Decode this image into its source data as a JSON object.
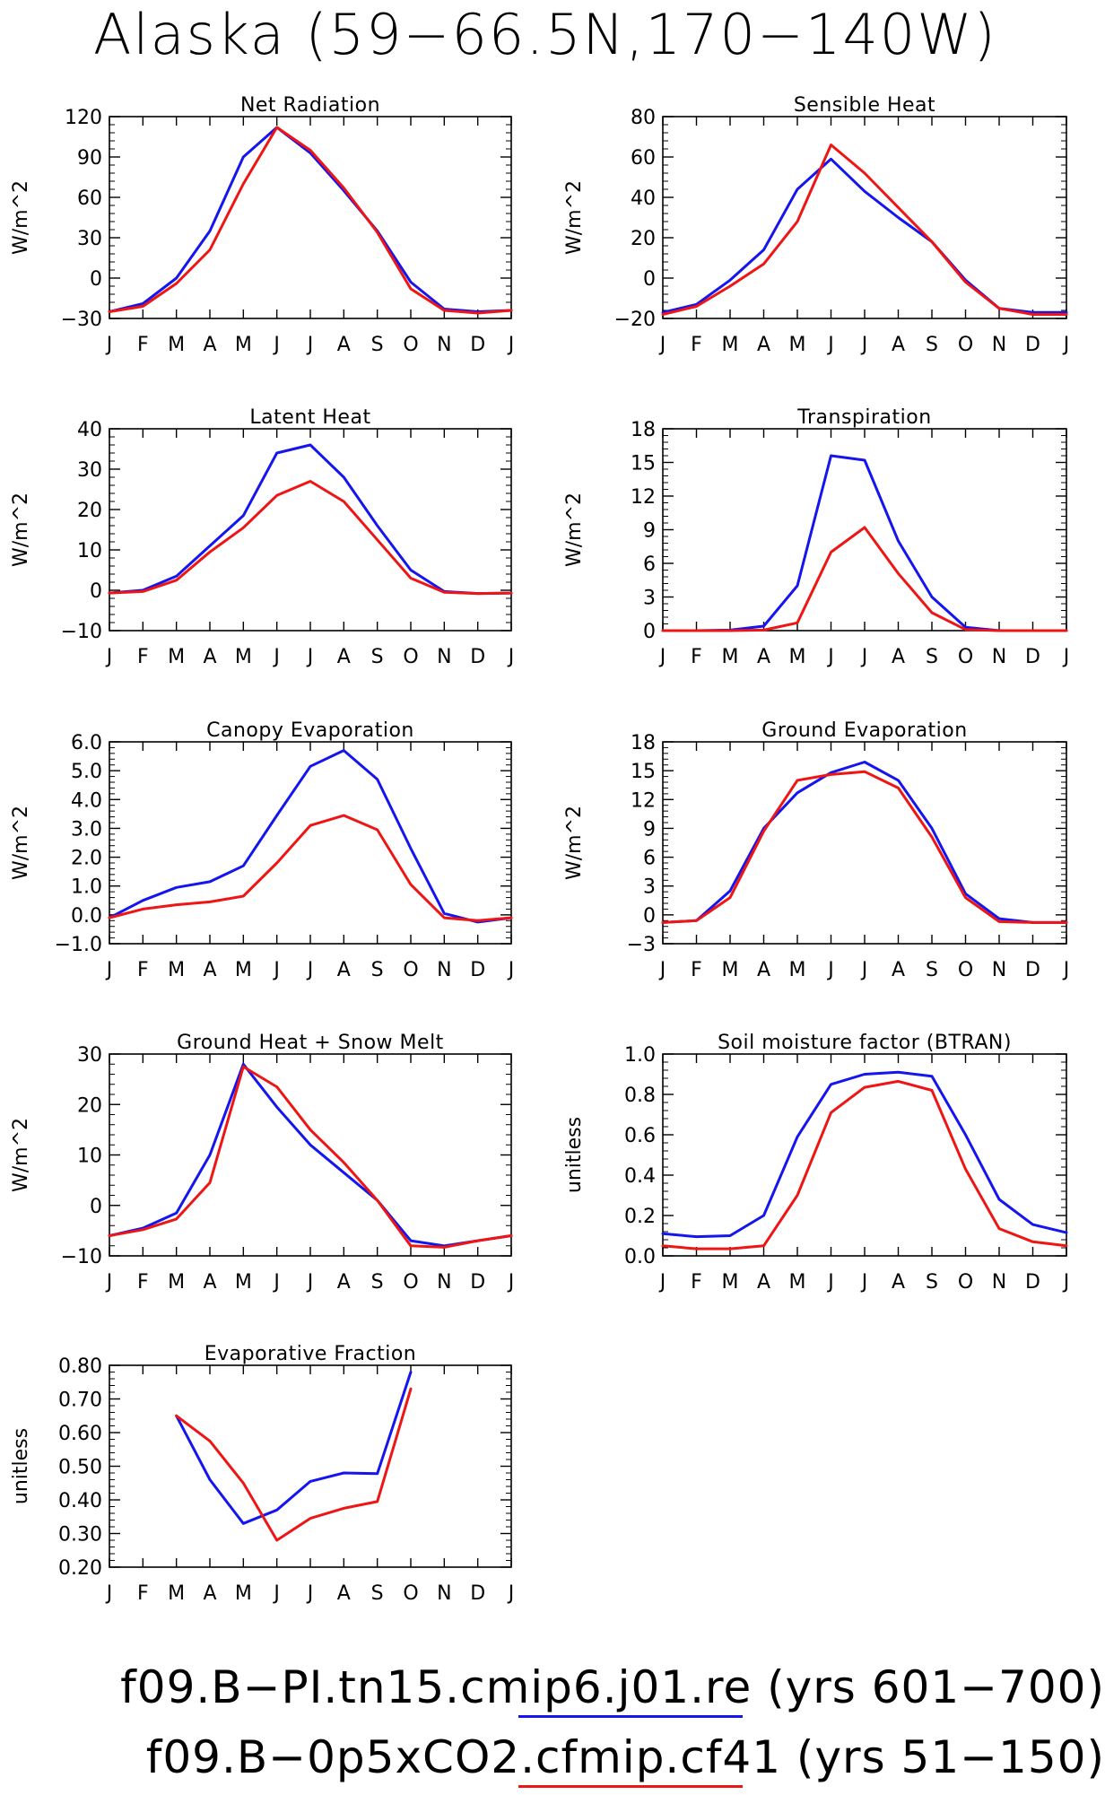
{
  "title": "Alaska (59−66.5N,170−140W)",
  "colors": {
    "series_1": "#1515ee",
    "series_2": "#ee1515"
  },
  "footer": {
    "run1": "f09.B−PI.tn15.cmip6.j01.re (yrs 601−700)",
    "run2": "f09.B−0p5xCO2.cfmip.cf41 (yrs 51−150)"
  },
  "chart_data": [
    {
      "type": "line",
      "title": "Net Radiation",
      "ylabel": "W/m^2",
      "x": [
        "J",
        "F",
        "M",
        "A",
        "M",
        "J",
        "J",
        "A",
        "S",
        "O",
        "N",
        "D",
        "J"
      ],
      "ylim": [
        -30,
        120
      ],
      "yticks": [
        -30,
        0,
        30,
        60,
        90,
        120
      ],
      "ytick_labels": [
        "−30",
        "0",
        "30",
        "60",
        "90",
        "120"
      ],
      "series": [
        {
          "values": [
            -25,
            -19,
            0,
            35,
            90,
            112,
            93,
            65,
            35,
            -3,
            -23,
            -25,
            -24
          ]
        },
        {
          "values": [
            -25,
            -21,
            -4,
            21,
            70,
            112,
            95,
            67,
            34,
            -8,
            -24,
            -26,
            -24
          ]
        }
      ]
    },
    {
      "type": "line",
      "title": "Sensible Heat",
      "ylabel": "W/m^2",
      "x": [
        "J",
        "F",
        "M",
        "A",
        "M",
        "J",
        "J",
        "A",
        "S",
        "O",
        "N",
        "D",
        "J"
      ],
      "ylim": [
        -20,
        80
      ],
      "yticks": [
        -20,
        0,
        20,
        40,
        60,
        80
      ],
      "ytick_labels": [
        "−20",
        "0",
        "20",
        "40",
        "60",
        "80"
      ],
      "series": [
        {
          "values": [
            -17,
            -13,
            -1,
            14,
            44,
            59,
            43,
            30,
            18,
            -1,
            -15,
            -17,
            -17
          ]
        },
        {
          "values": [
            -18,
            -14,
            -4,
            7,
            28,
            66,
            52,
            35,
            18,
            -2,
            -15,
            -18,
            -18
          ]
        }
      ]
    },
    {
      "type": "line",
      "title": "Latent Heat",
      "ylabel": "W/m^2",
      "x": [
        "J",
        "F",
        "M",
        "A",
        "M",
        "J",
        "J",
        "A",
        "S",
        "O",
        "N",
        "D",
        "J"
      ],
      "ylim": [
        -10,
        40
      ],
      "yticks": [
        -10,
        0,
        10,
        20,
        30,
        40
      ],
      "ytick_labels": [
        "−10",
        "0",
        "10",
        "20",
        "30",
        "40"
      ],
      "series": [
        {
          "values": [
            -0.7,
            0,
            3.5,
            11,
            18.5,
            34,
            36,
            28,
            16,
            5,
            -0.3,
            -0.8,
            -0.7
          ]
        },
        {
          "values": [
            -0.7,
            -0.3,
            2.5,
            9.5,
            15.5,
            23.5,
            27,
            22,
            12.5,
            3,
            -0.5,
            -0.8,
            -0.7
          ]
        }
      ]
    },
    {
      "type": "line",
      "title": "Transpiration",
      "ylabel": "W/m^2",
      "x": [
        "J",
        "F",
        "M",
        "A",
        "M",
        "J",
        "J",
        "A",
        "S",
        "O",
        "N",
        "D",
        "J"
      ],
      "ylim": [
        0,
        18
      ],
      "yticks": [
        0,
        3,
        6,
        9,
        12,
        15,
        18
      ],
      "ytick_labels": [
        "0",
        "3",
        "6",
        "9",
        "12",
        "15",
        "18"
      ],
      "series": [
        {
          "values": [
            0,
            0,
            0.05,
            0.4,
            4,
            15.6,
            15.2,
            8,
            3,
            0.3,
            0,
            0,
            0
          ]
        },
        {
          "values": [
            0,
            0,
            0,
            0.05,
            0.7,
            7,
            9.2,
            5.1,
            1.6,
            0.1,
            0,
            0,
            0
          ]
        }
      ]
    },
    {
      "type": "line",
      "title": "Canopy Evaporation",
      "ylabel": "W/m^2",
      "x": [
        "J",
        "F",
        "M",
        "A",
        "M",
        "J",
        "J",
        "A",
        "S",
        "O",
        "N",
        "D",
        "J"
      ],
      "ylim": [
        -1,
        6
      ],
      "yticks": [
        -1,
        0,
        1,
        2,
        3,
        4,
        5,
        6
      ],
      "ytick_labels": [
        "−1.0",
        "0.0",
        "1.0",
        "2.0",
        "3.0",
        "4.0",
        "5.0",
        "6.0"
      ],
      "series": [
        {
          "values": [
            -0.1,
            0.5,
            0.95,
            1.15,
            1.7,
            3.45,
            5.15,
            5.7,
            4.7,
            2.3,
            0.05,
            -0.25,
            -0.1
          ]
        },
        {
          "values": [
            -0.1,
            0.2,
            0.35,
            0.45,
            0.65,
            1.8,
            3.1,
            3.45,
            2.95,
            1.05,
            -0.1,
            -0.2,
            -0.1
          ]
        }
      ]
    },
    {
      "type": "line",
      "title": "Ground Evaporation",
      "ylabel": "W/m^2",
      "x": [
        "J",
        "F",
        "M",
        "A",
        "M",
        "J",
        "J",
        "A",
        "S",
        "O",
        "N",
        "D",
        "J"
      ],
      "ylim": [
        -3,
        18
      ],
      "yticks": [
        -3,
        0,
        3,
        6,
        9,
        12,
        15,
        18
      ],
      "ytick_labels": [
        "−3",
        "0",
        "3",
        "6",
        "9",
        "12",
        "15",
        "18"
      ],
      "series": [
        {
          "values": [
            -0.8,
            -0.6,
            2.5,
            9,
            12.7,
            14.8,
            15.9,
            14,
            9,
            2.2,
            -0.4,
            -0.8,
            -0.8
          ]
        },
        {
          "values": [
            -0.8,
            -0.6,
            1.8,
            8.7,
            14,
            14.6,
            14.9,
            13.2,
            8.1,
            1.8,
            -0.7,
            -0.8,
            -0.8
          ]
        }
      ]
    },
    {
      "type": "line",
      "title": "Ground Heat + Snow Melt",
      "ylabel": "W/m^2",
      "x": [
        "J",
        "F",
        "M",
        "A",
        "M",
        "J",
        "J",
        "A",
        "S",
        "O",
        "N",
        "D",
        "J"
      ],
      "ylim": [
        -10,
        30
      ],
      "yticks": [
        -10,
        0,
        10,
        20,
        30
      ],
      "ytick_labels": [
        "−10",
        "0",
        "10",
        "20",
        "30"
      ],
      "series": [
        {
          "values": [
            -6,
            -4.5,
            -1.5,
            10,
            28,
            19.5,
            12,
            6.5,
            1,
            -7,
            -8,
            -7,
            -6
          ]
        },
        {
          "values": [
            -6,
            -4.8,
            -2.7,
            4.5,
            27.5,
            23.5,
            15,
            8.5,
            1,
            -8,
            -8.3,
            -7,
            -6
          ]
        }
      ]
    },
    {
      "type": "line",
      "title": "Soil moisture factor (BTRAN)",
      "ylabel": "unitless",
      "x": [
        "J",
        "F",
        "M",
        "A",
        "M",
        "J",
        "J",
        "A",
        "S",
        "O",
        "N",
        "D",
        "J"
      ],
      "ylim": [
        0,
        1
      ],
      "yticks": [
        0,
        0.2,
        0.4,
        0.6,
        0.8,
        1.0
      ],
      "ytick_labels": [
        "0.0",
        "0.2",
        "0.4",
        "0.6",
        "0.8",
        "1.0"
      ],
      "series": [
        {
          "values": [
            0.11,
            0.095,
            0.1,
            0.2,
            0.59,
            0.85,
            0.9,
            0.91,
            0.89,
            0.6,
            0.28,
            0.155,
            0.115
          ]
        },
        {
          "values": [
            0.05,
            0.035,
            0.035,
            0.05,
            0.3,
            0.71,
            0.835,
            0.865,
            0.82,
            0.43,
            0.135,
            0.07,
            0.05
          ]
        }
      ]
    },
    {
      "type": "line",
      "title": "Evaporative Fraction",
      "ylabel": "unitless",
      "x": [
        "J",
        "F",
        "M",
        "A",
        "M",
        "J",
        "J",
        "A",
        "S",
        "O",
        "N",
        "D",
        "J"
      ],
      "ylim": [
        0.2,
        0.8
      ],
      "yticks": [
        0.2,
        0.3,
        0.4,
        0.5,
        0.6,
        0.7,
        0.8
      ],
      "ytick_labels": [
        "0.20",
        "0.30",
        "0.40",
        "0.50",
        "0.60",
        "0.70",
        "0.80"
      ],
      "series": [
        {
          "values": [
            null,
            null,
            0.65,
            0.46,
            0.33,
            0.37,
            0.455,
            0.48,
            0.478,
            0.78,
            null,
            null,
            null
          ]
        },
        {
          "values": [
            null,
            null,
            0.65,
            0.575,
            0.45,
            0.28,
            0.345,
            0.375,
            0.395,
            0.73,
            null,
            null,
            null
          ]
        }
      ]
    }
  ]
}
